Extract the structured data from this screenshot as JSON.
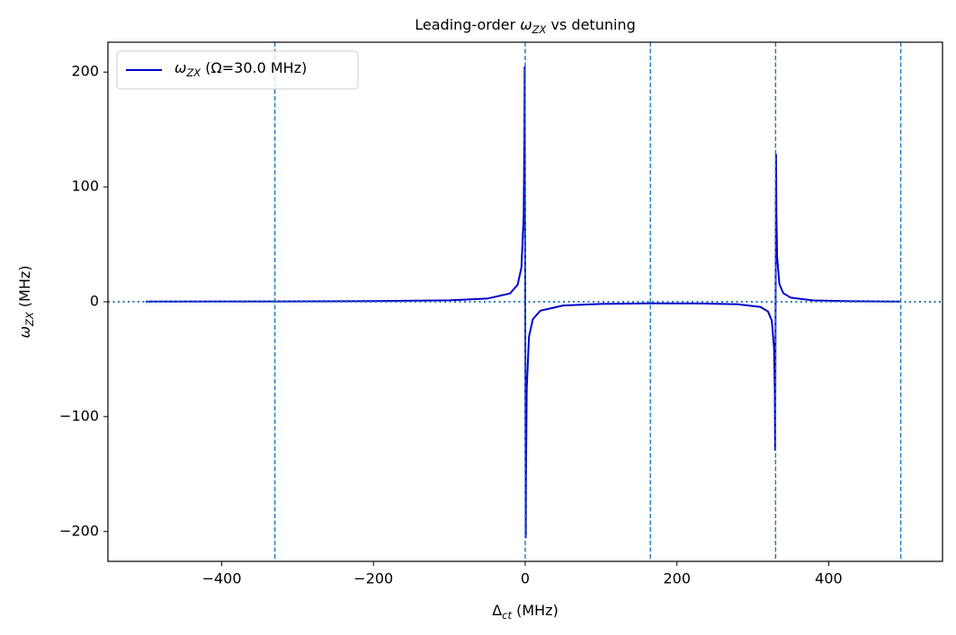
{
  "chart_data": {
    "type": "line",
    "title": [
      {
        "text": "Leading-order "
      },
      {
        "text": "ω",
        "italic": true
      },
      {
        "text": "ZX",
        "italic": true,
        "sub": true
      },
      {
        "text": " vs detuning"
      }
    ],
    "xlabel": [
      {
        "text": "Δ"
      },
      {
        "text": "ct",
        "italic": true,
        "sub": true
      },
      {
        "text": " (MHz)"
      }
    ],
    "ylabel": [
      {
        "text": "ω",
        "italic": true
      },
      {
        "text": "ZX",
        "italic": true,
        "sub": true
      },
      {
        "text": " (MHz)"
      }
    ],
    "x": [
      -500,
      -330,
      -200,
      -100,
      -50,
      -20,
      -10,
      -5,
      -2,
      -1,
      -0.73,
      0.73,
      1,
      2,
      5,
      10,
      20,
      50,
      100,
      165,
      230,
      280,
      310,
      320,
      325,
      328,
      329,
      329.38,
      330.62,
      331,
      332,
      335,
      340,
      350,
      380,
      430,
      495
    ],
    "series": [
      {
        "name": [
          {
            "text": "ω",
            "italic": true
          },
          {
            "text": "ZX",
            "italic": true,
            "sub": true
          },
          {
            "text": " (Ω=30.0 MHz)"
          }
        ],
        "color": "#0000cc",
        "values": [
          0.2,
          0.33,
          0.6,
          1.3,
          2.8,
          7.3,
          14.8,
          29.8,
          74.8,
          149.8,
          205,
          -205.7,
          -150.2,
          -75.2,
          -30.2,
          -15.25,
          -7.74,
          -3.25,
          -1.85,
          -1.39,
          -1.45,
          -2.14,
          -4.48,
          -8.47,
          -16.46,
          -40.46,
          -80.46,
          -129.5,
          128.6,
          79.5,
          39.5,
          15.5,
          7.56,
          3.57,
          1.2,
          0.45,
          0.18
        ]
      }
    ],
    "vlines": [
      -330,
      0,
      165,
      330,
      495
    ],
    "hlines": [
      0
    ],
    "refline_color": "#1f77b4",
    "xlim": [
      -550,
      550
    ],
    "ylim": [
      -226,
      226
    ],
    "xticks": [
      {
        "value": -400,
        "label": "−400"
      },
      {
        "value": -200,
        "label": "−200"
      },
      0,
      200,
      400
    ],
    "yticks": [
      {
        "value": -200,
        "label": "−200"
      },
      {
        "value": -100,
        "label": "−100"
      },
      0,
      100,
      200
    ],
    "legend": "upper left"
  }
}
